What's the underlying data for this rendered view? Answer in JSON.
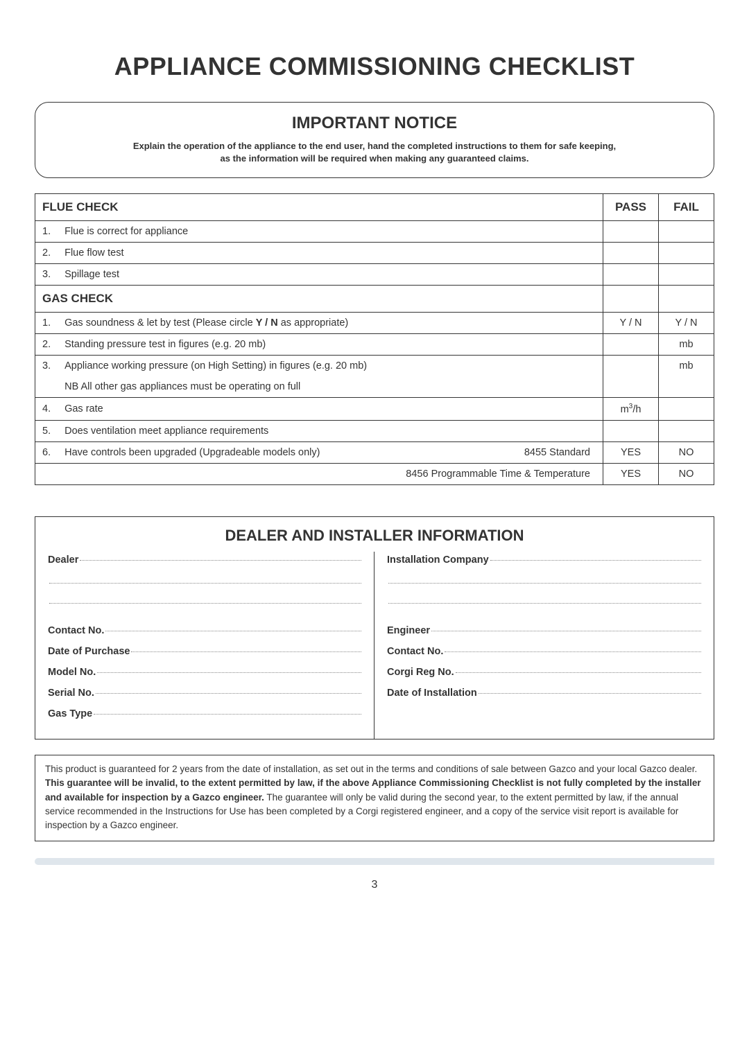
{
  "page_title": "APPLIANCE COMMISSIONING CHECKLIST",
  "notice": {
    "heading": "IMPORTANT NOTICE",
    "text_line1": "Explain the operation of the appliance to the end user, hand the completed instructions to them for safe keeping,",
    "text_line2": "as the information will be required when making any guaranteed claims."
  },
  "check_table": {
    "flue_header": "FLUE CHECK",
    "gas_header": "GAS CHECK",
    "pass_label": "PASS",
    "fail_label": "FAIL",
    "rows": {
      "flue1": {
        "num": "1.",
        "text": "Flue is correct for appliance",
        "pass": "",
        "fail": ""
      },
      "flue2": {
        "num": "2.",
        "text": "Flue flow test",
        "pass": "",
        "fail": ""
      },
      "flue3": {
        "num": "3.",
        "text": "Spillage test",
        "pass": "",
        "fail": ""
      },
      "gas1": {
        "num": "1.",
        "text_a": "Gas soundness & let by test (Please circle ",
        "text_bold": "Y / N",
        "text_b": " as appropriate)",
        "pass": "Y / N",
        "fail": "Y / N"
      },
      "gas2": {
        "num": "2.",
        "text": "Standing pressure test in figures (e.g. 20 mb)",
        "pass": "",
        "fail": "mb"
      },
      "gas3": {
        "num": "3.",
        "text_a": "Appliance working pressure (on High Setting) in figures (e.g. 20 mb)",
        "text_b": "NB All other gas appliances must be operating on full",
        "pass": "",
        "fail": "mb"
      },
      "gas4": {
        "num": "4.",
        "text": "Gas rate",
        "pass_html": "m³/h",
        "fail": ""
      },
      "gas5": {
        "num": "5.",
        "text": "Does ventilation meet appliance requirements",
        "pass": "",
        "fail": ""
      },
      "gas6": {
        "num": "6.",
        "text": "Have controls been upgraded (Upgradeable models only)",
        "right": "8455 Standard",
        "pass": "YES",
        "fail": "NO"
      },
      "gas6b": {
        "right": "8456 Programmable Time & Temperature",
        "pass": "YES",
        "fail": "NO"
      }
    }
  },
  "dealer_installer": {
    "heading": "DEALER AND INSTALLER INFORMATION",
    "left": {
      "dealer": "Dealer",
      "contact_no": "Contact No.",
      "date_of_purchase": "Date of Purchase",
      "model_no": "Model No.",
      "serial_no": "Serial No.",
      "gas_type": "Gas Type"
    },
    "right": {
      "installation_company": "Installation Company",
      "engineer": "Engineer",
      "contact_no": "Contact No.",
      "corgi_reg_no": "Corgi Reg No.",
      "date_of_installation": "Date of Installation"
    }
  },
  "guarantee": {
    "p1_a": "This product is guaranteed for 2 years from the date of installation, as set out in the terms and conditions of sale between Gazco and your local Gazco dealer. ",
    "p1_b": "This guarantee will be invalid, to the extent permitted by law, if the above Appliance Commissioning Checklist is not fully completed by the installer and available for inspection by a Gazco engineer.",
    "p1_c": " The guarantee will only be valid during the second year, to the extent permitted by law, if the annual service recommended in the Instructions for Use has been completed by a Corgi registered engineer, and a copy of the service visit report is available for inspection by a Gazco engineer."
  },
  "page_number": "3",
  "colors": {
    "text": "#333333",
    "border": "#333333",
    "bottom_bar": "#dfe6ec",
    "dotline": "#888888"
  }
}
